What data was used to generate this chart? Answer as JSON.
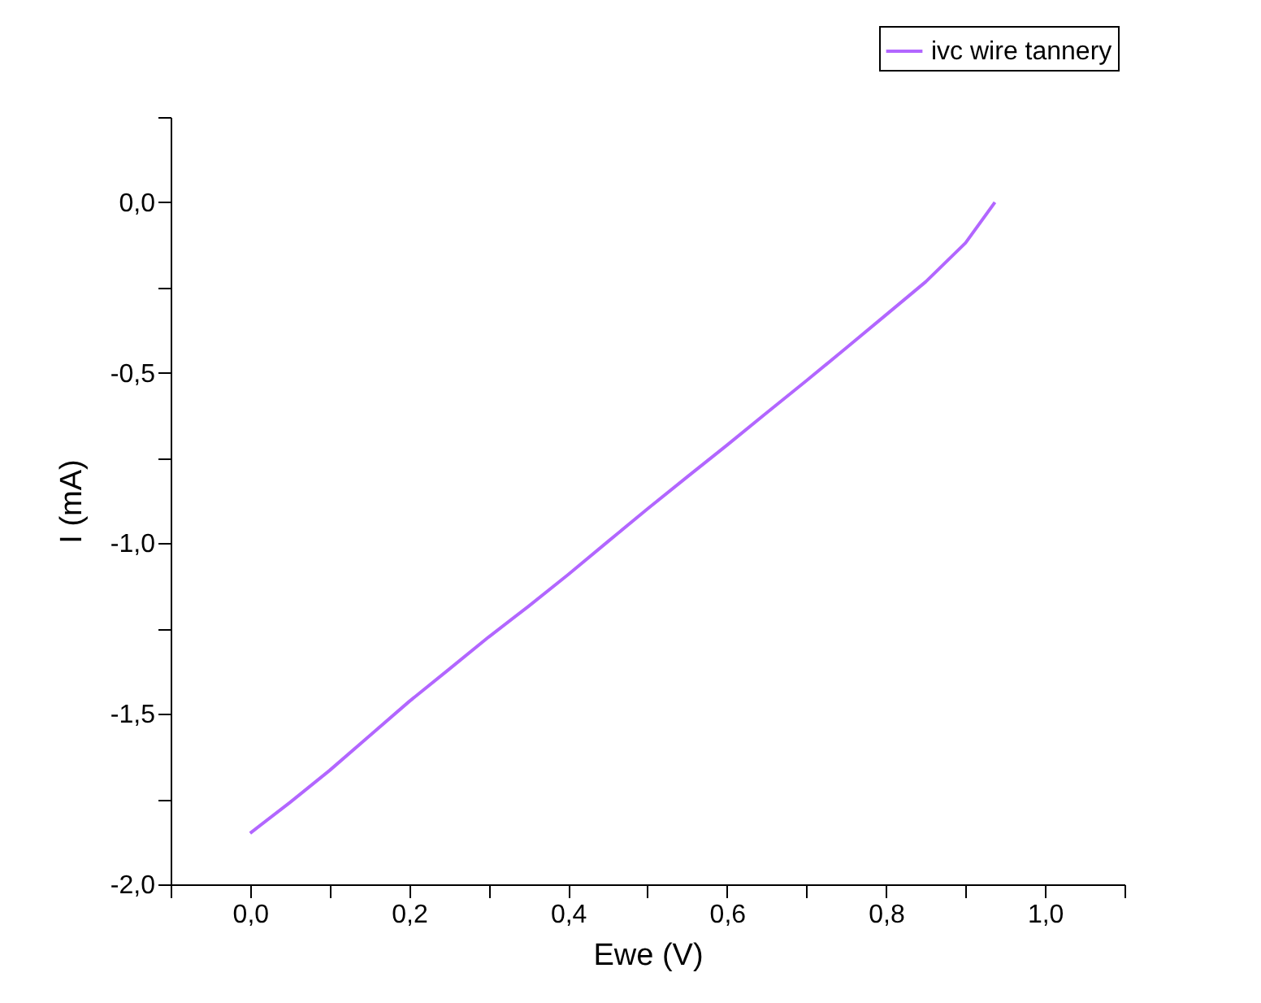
{
  "chart_data": {
    "type": "line",
    "xlabel": "Ewe (V)",
    "ylabel": "I (mA)",
    "legend": "top right",
    "grid": false,
    "marker": "none",
    "line_style": "solid",
    "xlim": [
      -0.1,
      1.1
    ],
    "ylim": [
      -2.0,
      0.25
    ],
    "xticks": [
      {
        "value": -0.1,
        "label": null
      },
      {
        "value": 0.0,
        "label": "0,0"
      },
      {
        "value": 0.1,
        "label": null
      },
      {
        "value": 0.2,
        "label": "0,2"
      },
      {
        "value": 0.3,
        "label": null
      },
      {
        "value": 0.4,
        "label": "0,4"
      },
      {
        "value": 0.5,
        "label": null
      },
      {
        "value": 0.6,
        "label": "0,6"
      },
      {
        "value": 0.7,
        "label": null
      },
      {
        "value": 0.8,
        "label": "0,8"
      },
      {
        "value": 0.9,
        "label": null
      },
      {
        "value": 1.0,
        "label": "1,0"
      },
      {
        "value": 1.1,
        "label": null
      }
    ],
    "yticks": [
      {
        "value": -2.0,
        "label": "-2,0"
      },
      {
        "value": -1.75,
        "label": null
      },
      {
        "value": -1.5,
        "label": "-1,5"
      },
      {
        "value": -1.25,
        "label": null
      },
      {
        "value": -1.0,
        "label": "-1,0"
      },
      {
        "value": -0.75,
        "label": null
      },
      {
        "value": -0.5,
        "label": "-0,5"
      },
      {
        "value": -0.25,
        "label": null
      },
      {
        "value": 0.0,
        "label": "0,0"
      },
      {
        "value": 0.25,
        "label": null
      }
    ],
    "series": [
      {
        "name": "ivc wire tannery",
        "color": "#b266ff",
        "x": [
          0.0,
          0.05,
          0.1,
          0.15,
          0.2,
          0.25,
          0.3,
          0.35,
          0.4,
          0.45,
          0.5,
          0.55,
          0.6,
          0.65,
          0.7,
          0.75,
          0.8,
          0.85,
          0.9,
          0.937
        ],
        "values": [
          -1.85,
          -1.76,
          -1.666,
          -1.565,
          -1.464,
          -1.37,
          -1.275,
          -1.185,
          -1.092,
          -0.995,
          -0.899,
          -0.805,
          -0.712,
          -0.617,
          -0.523,
          -0.427,
          -0.33,
          -0.233,
          -0.119,
          0.0
        ]
      }
    ]
  }
}
